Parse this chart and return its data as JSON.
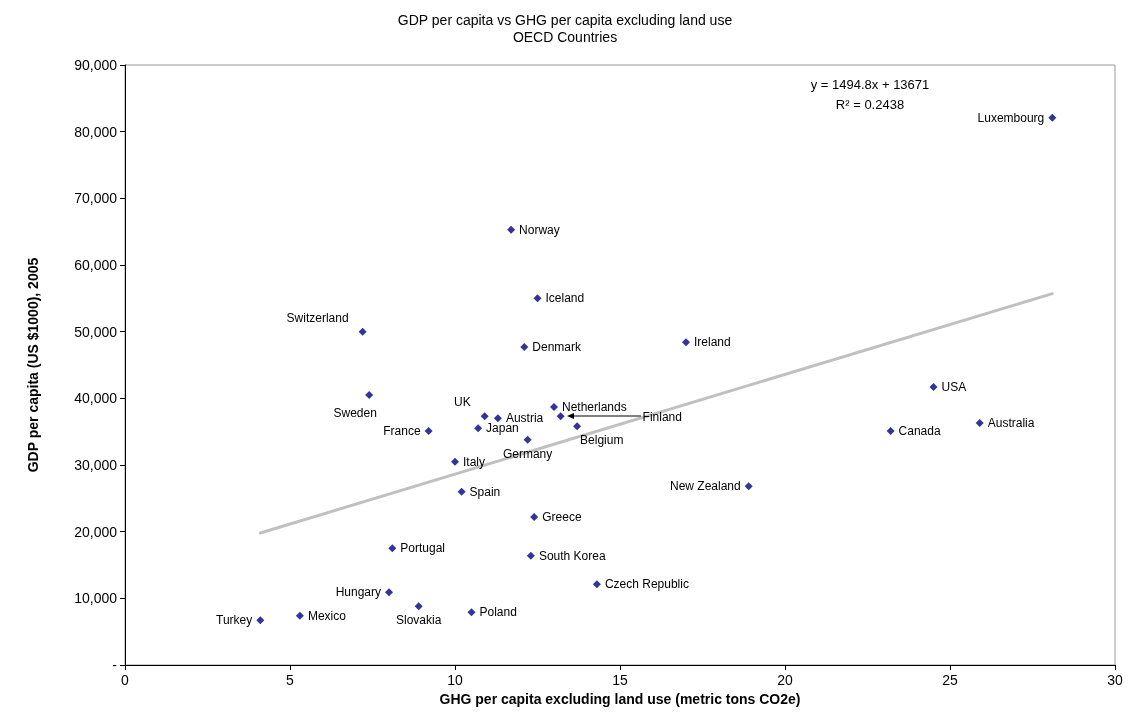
{
  "chart_data": {
    "type": "scatter",
    "title": "GDP per capita vs GHG per capita excluding land use",
    "subtitle": "OECD Countries",
    "xlabel": "GHG per capita excluding land use (metric tons CO2e)",
    "ylabel": "GDP per capita (US $1000), 2005",
    "xlim": [
      0,
      30
    ],
    "xticks": [
      0,
      5,
      10,
      15,
      20,
      25,
      30
    ],
    "ylim": [
      0,
      90000
    ],
    "yticks": [
      {
        "value": 0,
        "label": "-"
      },
      {
        "value": 10000,
        "label": "10,000"
      },
      {
        "value": 20000,
        "label": "20,000"
      },
      {
        "value": 30000,
        "label": "30,000"
      },
      {
        "value": 40000,
        "label": "40,000"
      },
      {
        "value": 50000,
        "label": "50,000"
      },
      {
        "value": 60000,
        "label": "60,000"
      },
      {
        "value": 70000,
        "label": "70,000"
      },
      {
        "value": 80000,
        "label": "80,000"
      },
      {
        "value": 90000,
        "label": "90,000"
      }
    ],
    "grid": false,
    "series": [
      {
        "color": "#000080",
        "marker": "diamond",
        "x": [
          28.1,
          11.7,
          12.5,
          7.2,
          17.0,
          12.1,
          24.5,
          7.4,
          13.0,
          10.9,
          13.2,
          11.3,
          25.9,
          13.7,
          10.7,
          9.2,
          23.2,
          12.2,
          10.0,
          18.9,
          10.2,
          12.4,
          8.1,
          12.3,
          14.3,
          8.0,
          8.9,
          10.5,
          5.3,
          4.1
        ],
        "values": [
          82100,
          65300,
          55000,
          50000,
          48400,
          47700,
          41700,
          40500,
          38700,
          37300,
          37300,
          37000,
          36300,
          35800,
          35500,
          35100,
          35100,
          33800,
          30500,
          26800,
          26000,
          22200,
          17500,
          16400,
          12100,
          10900,
          8800,
          7900,
          7400,
          6700
        ]
      },
      {
        "type": "line",
        "color": "#c0c0c0",
        "marker": "none",
        "line_style": "solid",
        "x": [
          4.1,
          28.1
        ],
        "values": [
          19800,
          55700
        ]
      }
    ],
    "annotations": [
      {
        "text": "Luxembourg",
        "x": 28.1,
        "y": 82100
      },
      {
        "text": "Norway",
        "x": 11.7,
        "y": 65300
      },
      {
        "text": "Iceland",
        "x": 12.5,
        "y": 55000
      },
      {
        "text": "Switzerland",
        "x": 7.2,
        "y": 50000
      },
      {
        "text": "Ireland",
        "x": 17.0,
        "y": 48400
      },
      {
        "text": "Denmark",
        "x": 12.1,
        "y": 47700
      },
      {
        "text": "USA",
        "x": 24.5,
        "y": 41700
      },
      {
        "text": "Sweden",
        "x": 7.4,
        "y": 40500
      },
      {
        "text": "Netherlands",
        "x": 13.0,
        "y": 38700
      },
      {
        "text": "UK",
        "x": 10.9,
        "y": 37300
      },
      "Finland",
      {
        "text": "Austria",
        "x": 11.3,
        "y": 37000
      },
      {
        "text": "Australia",
        "x": 25.9,
        "y": 36300
      },
      {
        "text": "Belgium",
        "x": 13.7,
        "y": 35800
      },
      {
        "text": "Japan",
        "x": 10.7,
        "y": 35500
      },
      {
        "text": "France",
        "x": 9.2,
        "y": 35100
      },
      {
        "text": "Canada",
        "x": 23.2,
        "y": 35100
      },
      {
        "text": "Germany",
        "x": 12.2,
        "y": 33800
      },
      {
        "text": "Italy",
        "x": 10.0,
        "y": 30500
      },
      {
        "text": "New Zealand",
        "x": 18.9,
        "y": 26800
      },
      {
        "text": "Spain",
        "x": 10.2,
        "y": 26000
      },
      {
        "text": "Greece",
        "x": 12.4,
        "y": 22200
      },
      {
        "text": "Portugal",
        "x": 8.1,
        "y": 17500
      },
      {
        "text": "South Korea",
        "x": 12.3,
        "y": 16400
      },
      {
        "text": "Czech Republic",
        "x": 14.3,
        "y": 12100
      },
      {
        "text": "Hungary",
        "x": 8.0,
        "y": 10900
      },
      {
        "text": "Slovakia",
        "x": 8.9,
        "y": 8800
      },
      {
        "text": "Poland",
        "x": 10.5,
        "y": 7900
      },
      {
        "text": "Mexico",
        "x": 5.3,
        "y": 7400
      },
      {
        "text": "Turkey",
        "x": 4.1,
        "y": 6700
      },
      "y = 1494.8x + 13671",
      "R² = 0.2438"
    ]
  }
}
